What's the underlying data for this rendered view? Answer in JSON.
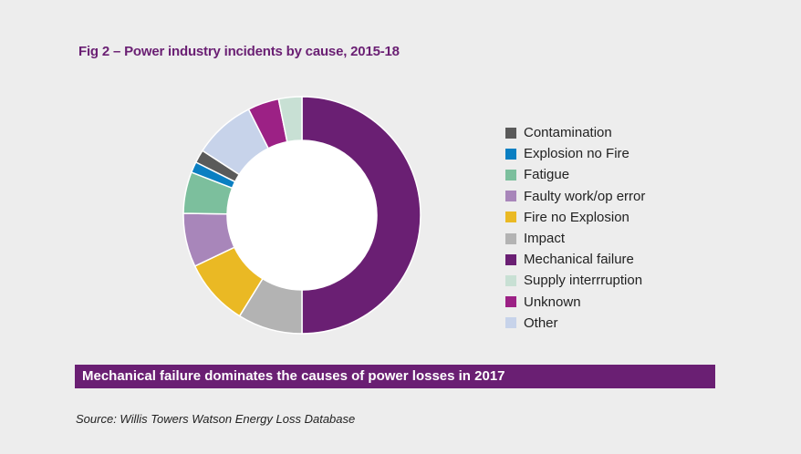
{
  "title": "Fig 2 – Power industry incidents by cause, 2015-18",
  "banner": "Mechanical failure dominates the causes of power losses in 2017",
  "source": "Source: Willis Towers Watson Energy Loss Database",
  "chart_data": {
    "type": "pie",
    "donut": true,
    "title": "Fig 2 – Power industry incidents by cause, 2015-18",
    "legend_position": "right",
    "start_angle_deg": 0,
    "direction": "clockwise",
    "slices": [
      {
        "label": "Mechanical failure",
        "value": 50.5,
        "color": "#6a1f73"
      },
      {
        "label": "Impact",
        "value": 8.9,
        "color": "#b3b3b3"
      },
      {
        "label": "Fire no Explosion",
        "value": 9.2,
        "color": "#eab924"
      },
      {
        "label": "Faulty work/op error",
        "value": 7.4,
        "color": "#a886ba"
      },
      {
        "label": "Fatigue",
        "value": 5.7,
        "color": "#7cbf9d"
      },
      {
        "label": "Explosion no Fire",
        "value": 1.5,
        "color": "#0a7fc2"
      },
      {
        "label": "Contamination",
        "value": 1.8,
        "color": "#5a5a5a"
      },
      {
        "label": "Other",
        "value": 8.5,
        "color": "#c7d3ea"
      },
      {
        "label": "Unknown",
        "value": 4.3,
        "color": "#9c2185"
      },
      {
        "label": "Supply interrruption",
        "value": 3.2,
        "color": "#c8e0d4"
      }
    ],
    "legend": [
      {
        "label": "Contamination",
        "color": "#5a5a5a"
      },
      {
        "label": "Explosion no Fire",
        "color": "#0a7fc2"
      },
      {
        "label": "Fatigue",
        "color": "#7cbf9d"
      },
      {
        "label": "Faulty work/op error",
        "color": "#a886ba"
      },
      {
        "label": "Fire no Explosion",
        "color": "#eab924"
      },
      {
        "label": "Impact",
        "color": "#b3b3b3"
      },
      {
        "label": "Mechanical failure",
        "color": "#6a1f73"
      },
      {
        "label": "Supply interrruption",
        "color": "#c8e0d4"
      },
      {
        "label": "Unknown",
        "color": "#9c2185"
      },
      {
        "label": "Other",
        "color": "#c7d3ea"
      }
    ]
  }
}
